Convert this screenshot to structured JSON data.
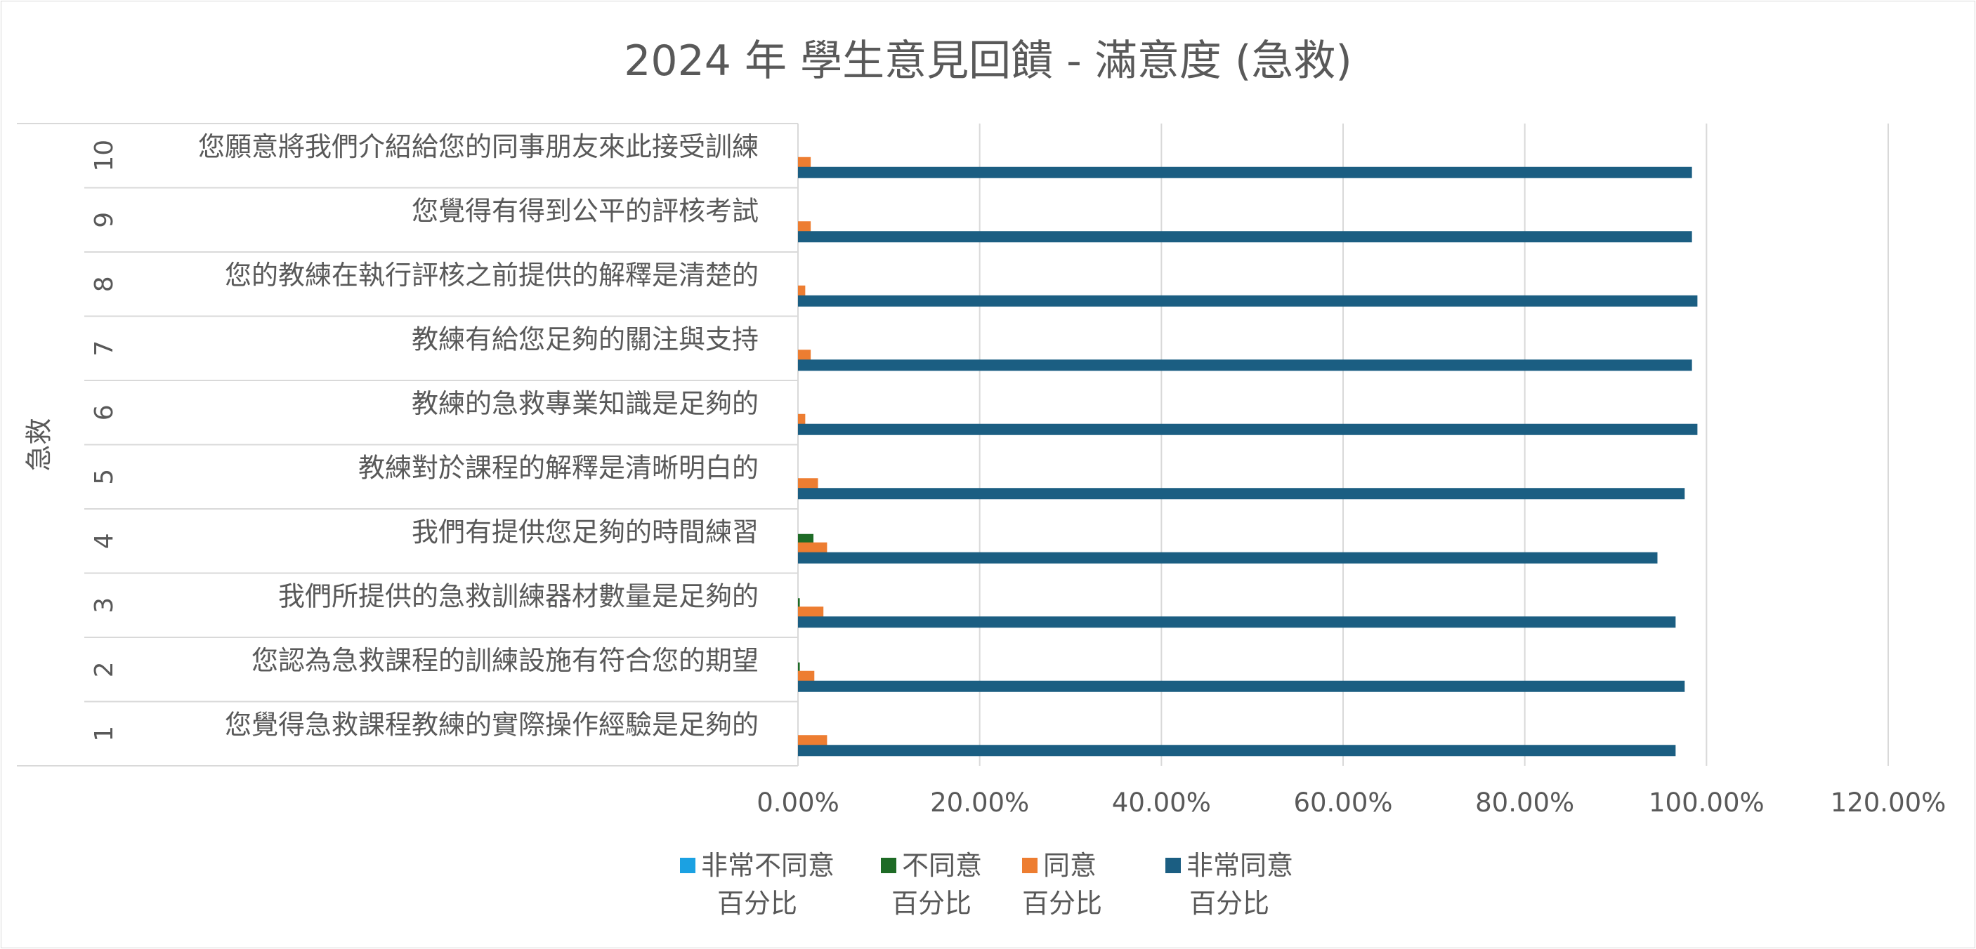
{
  "chart_data": {
    "type": "bar",
    "orientation": "horizontal",
    "title": "2024 年 學生意見回饋 - 滿意度 (急救)",
    "ylabel": "急救",
    "category_numbers": [
      "1",
      "2",
      "3",
      "4",
      "5",
      "6",
      "7",
      "8",
      "9",
      "10"
    ],
    "categories": [
      "您覺得急救課程教練的實際操作經驗是足夠的",
      "您認為急救課程的訓練設施有符合您的期望",
      "我們所提供的急救訓練器材數量是足夠的",
      "我們有提供您足夠的時間練習",
      "教練對於課程的解釋是清晰明白的",
      "教練的急救專業知識是足夠的",
      "教練有給您足夠的關注與支持",
      "您的教練在執行評核之前提供的解釋是清楚的",
      "您覺得有得到公平的評核考試",
      "您願意將我們介紹給您的同事朋友來此接受訓練"
    ],
    "series": [
      {
        "name": "非常不同意 百分比",
        "color": "#1ba1e2",
        "values": [
          0,
          0,
          0,
          0,
          0,
          0,
          0,
          0,
          0,
          0
        ]
      },
      {
        "name": "不同意 百分比",
        "color": "#1e6b26",
        "values": [
          0,
          0.2,
          0.2,
          1.7,
          0,
          0,
          0,
          0,
          0,
          0
        ]
      },
      {
        "name": "同意 百分比",
        "color": "#ed7d31",
        "values": [
          3.2,
          1.8,
          2.8,
          3.2,
          2.2,
          0.8,
          1.4,
          0.8,
          1.4,
          1.4
        ]
      },
      {
        "name": "非常同意 百分比",
        "color": "#1b5e82",
        "values": [
          96.6,
          97.6,
          96.6,
          94.6,
          97.6,
          99.0,
          98.4,
          99.0,
          98.4,
          98.4
        ]
      }
    ],
    "xlim": [
      0,
      120
    ],
    "xticks": [
      "0.00%",
      "20.00%",
      "40.00%",
      "60.00%",
      "80.00%",
      "100.00%",
      "120.00%"
    ],
    "grid": true,
    "legend_position": "bottom"
  },
  "legend": [
    {
      "line1": "非常不同意",
      "line2": "百分比",
      "color": "#1ba1e2"
    },
    {
      "line1": "不同意",
      "line2": "百分比",
      "color": "#1e6b26"
    },
    {
      "line1": "同意",
      "line2": "百分比",
      "color": "#ed7d31"
    },
    {
      "line1": "非常同意",
      "line2": "百分比",
      "color": "#1b5e82"
    }
  ]
}
